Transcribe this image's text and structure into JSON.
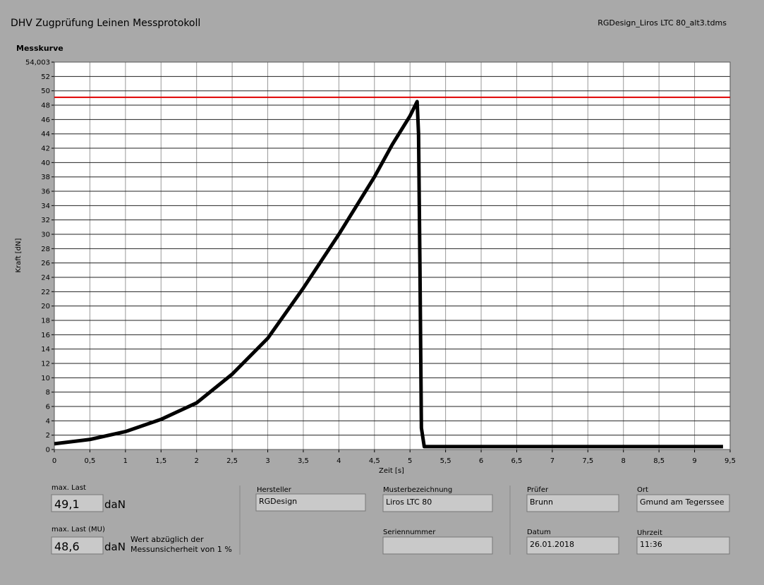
{
  "header": {
    "title": "DHV Zugprüfung Leinen Messprotokoll",
    "file": "RGDesign_Liros LTC 80_alt3.tdms"
  },
  "chart_data": {
    "type": "line",
    "title": "Messkurve",
    "x_label": "Zeit [s]",
    "y_label": "Kraft [dN]",
    "xlim": [
      0,
      9.5
    ],
    "ylim": [
      0,
      54.003
    ],
    "xticks": [
      0,
      {
        "value": 0.5,
        "label": "0,5"
      },
      1,
      {
        "value": 1.5,
        "label": "1,5"
      },
      2,
      {
        "value": 2.5,
        "label": "2,5"
      },
      3,
      {
        "value": 3.5,
        "label": "3,5"
      },
      4,
      {
        "value": 4.5,
        "label": "4,5"
      },
      5,
      {
        "value": 5.5,
        "label": "5,5"
      },
      6,
      {
        "value": 6.5,
        "label": "6,5"
      },
      7,
      {
        "value": 7.5,
        "label": "7,5"
      },
      8,
      {
        "value": 8.5,
        "label": "8,5"
      },
      9,
      {
        "value": 9.5,
        "label": "9,5"
      }
    ],
    "yticks": [
      0,
      2,
      4,
      6,
      8,
      10,
      12,
      14,
      16,
      18,
      20,
      22,
      24,
      26,
      28,
      30,
      32,
      34,
      36,
      38,
      40,
      42,
      44,
      46,
      48,
      50,
      52,
      {
        "value": 54.003,
        "label": "54,003"
      }
    ],
    "grid": true,
    "x": [
      0,
      0.5,
      1,
      1.5,
      2,
      2.5,
      3,
      3.5,
      4,
      4.5,
      4.75,
      5,
      5.1,
      5.12,
      5.14,
      5.16,
      5.2,
      6,
      7,
      8,
      9,
      9.4
    ],
    "series": [
      {
        "color": "#000000",
        "values": [
          0.8,
          1.4,
          2.5,
          4.2,
          6.5,
          10.5,
          15.5,
          22.5,
          30,
          38,
          42.5,
          46.5,
          48.5,
          44,
          25,
          3,
          0.4,
          0.4,
          0.4,
          0.4,
          0.4,
          0.4
        ]
      }
    ],
    "reference_line": {
      "value": 49.1,
      "color": "#e00000"
    }
  },
  "results": {
    "max_label": "max. Last",
    "max_value": "49,1",
    "max_unit": "daN",
    "mu_label": "max. Last (MU)",
    "mu_value": "48,6",
    "mu_unit": "daN",
    "note": [
      "Wert abzüglich der",
      "Messunsicherheit von 1 %"
    ]
  },
  "fields": {
    "hersteller_label": "Hersteller",
    "hersteller": "RGDesign",
    "muster_label": "Musterbezeichnung",
    "muster": "Liros LTC 80",
    "serie_label": "Seriennummer",
    "pruefer_label": "Prüfer",
    "pruefer": "Brunn",
    "datum_label": "Datum",
    "datum": "26.01.2018",
    "ort_label": "Ort",
    "ort": "Gmund am Tegerssee",
    "zeit_label": "Uhrzeit",
    "zeit": "11:36"
  }
}
